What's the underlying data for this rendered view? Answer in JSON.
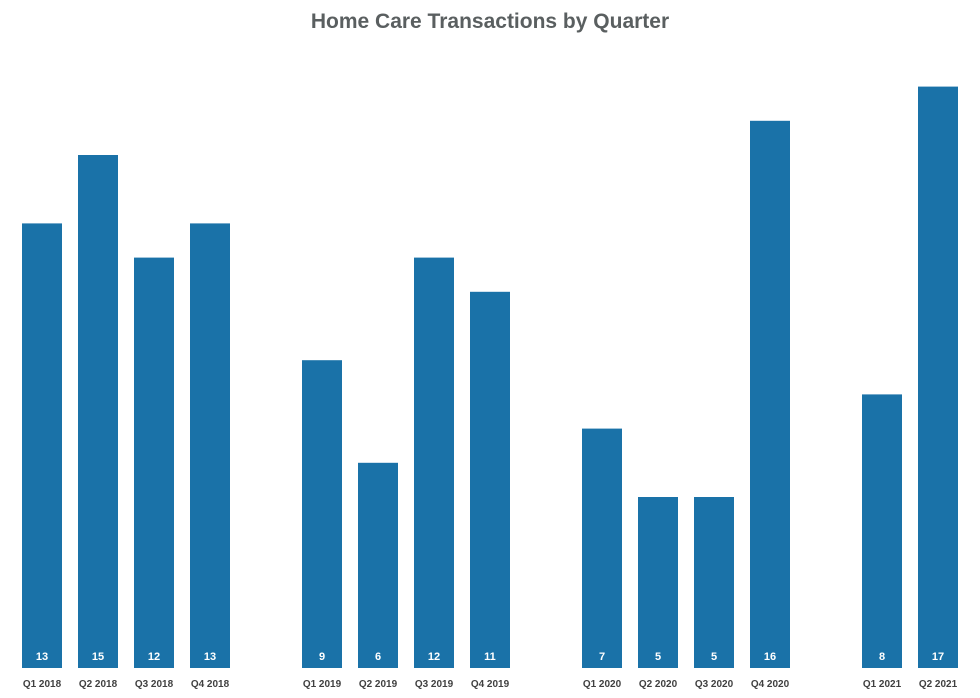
{
  "chart_data": {
    "type": "bar",
    "title": "Home Care Transactions by Quarter",
    "xlabel": "",
    "ylabel": "",
    "ylim": [
      0,
      18
    ],
    "grid": false,
    "legend": "none",
    "bar_color": "#1a72a8",
    "categories": [
      "Q1 2018",
      "Q2 2018",
      "Q3 2018",
      "Q4 2018",
      "Q1 2019",
      "Q2 2019",
      "Q3 2019",
      "Q4 2019",
      "Q1 2020",
      "Q2 2020",
      "Q3 2020",
      "Q4 2020",
      "Q1 2021",
      "Q2 2021"
    ],
    "values": [
      13,
      15,
      12,
      13,
      9,
      6,
      12,
      11,
      7,
      5,
      5,
      16,
      8,
      17
    ]
  }
}
